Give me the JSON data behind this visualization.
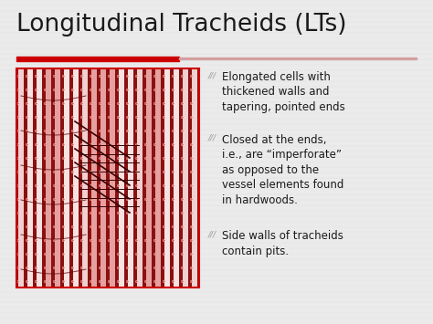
{
  "title": "Longitudinal Tracheids (LTs)",
  "title_fontsize": 19,
  "title_color": "#1a1a1a",
  "background_color": "#ebebeb",
  "red_bar_color": "#cc0000",
  "thin_line_color": "#d4a0a0",
  "bullets": [
    "Elongated cells with\nthickened walls and\ntapering, pointed ends",
    "Closed at the ends,\ni.e., are “imperforate”\nas opposed to the\nvessel elements found\nin hardwoods.",
    "Side walls of tracheids\ncontain pits."
  ],
  "bullet_fontsize": 8.5,
  "image_border_color": "#cc0000",
  "cell_bg_light": "#f5e0e0",
  "cell_wall_color": "#8b0000",
  "cell_fill_color": "#d46060",
  "dot_color": "#cc2222",
  "cross_line_color": "#5a0000"
}
